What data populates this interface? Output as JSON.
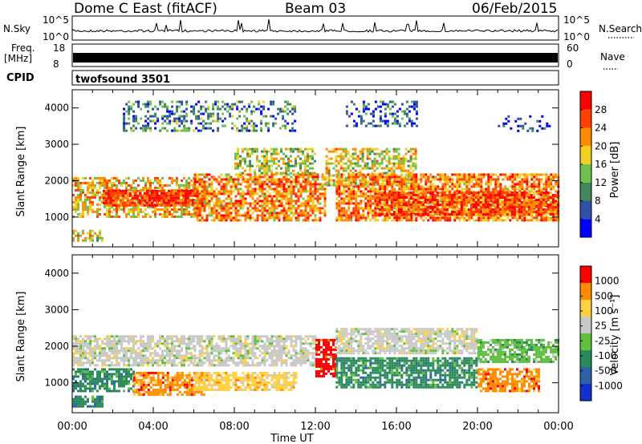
{
  "header": {
    "title": "Dome C East (fitACF)",
    "beam": "Beam 03",
    "date": "06/Feb/2015"
  },
  "strips": {
    "nsky_label": "N.Sky",
    "nsky_ticks": [
      "10^5",
      "10^0"
    ],
    "nsearch_label": "N.Search",
    "nsearch_ticks": [
      "10^5",
      "10^0"
    ],
    "freq_label": "Freq.",
    "freq_unit": "[MHz]",
    "freq_ticks": [
      "18",
      "8"
    ],
    "nave_label": "Nave",
    "nave_ticks": [
      "60",
      "0"
    ],
    "cpid_label": "CPID",
    "cpid_value": "twofsound 3501"
  },
  "chart_data": [
    {
      "type": "heatmap",
      "name": "power",
      "ylabel": "Slant Range [km]",
      "yticks": [
        "4000",
        "3000",
        "2000",
        "1000"
      ],
      "ylim_km": [
        180,
        4500
      ],
      "colorbar_label": "Power [dB]",
      "colorbar_ticks": [
        "28",
        "24",
        "20",
        "16",
        "12",
        "8",
        "4"
      ],
      "colorbar_range": [
        0,
        32
      ],
      "colors": [
        "#0000ff",
        "#3050a8",
        "#408858",
        "#70c050",
        "#f0d020",
        "#ff8c00",
        "#ff4000",
        "#ff0000"
      ],
      "regions": [
        {
          "t": [
            0.0,
            1.5
          ],
          "r": [
            350,
            650
          ],
          "level": 0.55
        },
        {
          "t": [
            0.0,
            6.0
          ],
          "r": [
            1000,
            2100
          ],
          "level": 0.62
        },
        {
          "t": [
            1.5,
            6.5
          ],
          "r": [
            1350,
            1750
          ],
          "level": 0.85
        },
        {
          "t": [
            6.0,
            12.5
          ],
          "r": [
            900,
            2200
          ],
          "level": 0.7
        },
        {
          "t": [
            8.0,
            12.0
          ],
          "r": [
            2200,
            2900
          ],
          "level": 0.5
        },
        {
          "t": [
            12.5,
            17.0
          ],
          "r": [
            1900,
            2900
          ],
          "level": 0.55
        },
        {
          "t": [
            13.0,
            24.0
          ],
          "r": [
            900,
            2200
          ],
          "level": 0.72
        },
        {
          "t": [
            15.0,
            24.0
          ],
          "r": [
            1100,
            1700
          ],
          "level": 0.8
        },
        {
          "t": [
            2.5,
            11.0
          ],
          "r": [
            3400,
            4200
          ],
          "level": 0.3
        },
        {
          "t": [
            13.5,
            17.0
          ],
          "r": [
            3500,
            4200
          ],
          "level": 0.2
        },
        {
          "t": [
            21.0,
            23.5
          ],
          "r": [
            3400,
            3800
          ],
          "level": 0.15
        }
      ]
    },
    {
      "type": "heatmap",
      "name": "velocity",
      "ylabel": "Slant Range [km]",
      "yticks": [
        "4000",
        "3000",
        "2000",
        "1000"
      ],
      "ylim_km": [
        180,
        4500
      ],
      "colorbar_label": "Velocity [m s⁻¹]",
      "colorbar_ticks": [
        "1000",
        "500",
        "100",
        "25",
        "-25",
        "-100",
        "-500",
        "-1000"
      ],
      "colors": [
        "#1030d0",
        "#3060a8",
        "#2a8a5a",
        "#60c040",
        "#c8c8c8",
        "#ffd040",
        "#ff8c00",
        "#ff0000"
      ],
      "regions": [
        {
          "t": [
            0.0,
            6.0
          ],
          "r": [
            1500,
            2300
          ],
          "cls": 4
        },
        {
          "t": [
            0.0,
            3.0
          ],
          "r": [
            800,
            1400
          ],
          "cls": 2
        },
        {
          "t": [
            0.0,
            1.5
          ],
          "r": [
            350,
            650
          ],
          "cls": 2
        },
        {
          "t": [
            3.0,
            6.5
          ],
          "r": [
            700,
            1300
          ],
          "cls": 6
        },
        {
          "t": [
            6.0,
            12.0
          ],
          "r": [
            1500,
            2300
          ],
          "cls": 4
        },
        {
          "t": [
            6.0,
            11.0
          ],
          "r": [
            800,
            1300
          ],
          "cls": 5
        },
        {
          "t": [
            12.0,
            13.0
          ],
          "r": [
            1200,
            2200
          ],
          "cls": 7
        },
        {
          "t": [
            13.0,
            20.0
          ],
          "r": [
            1800,
            2500
          ],
          "cls": 4
        },
        {
          "t": [
            13.0,
            20.0
          ],
          "r": [
            900,
            1700
          ],
          "cls": 2
        },
        {
          "t": [
            20.0,
            23.0
          ],
          "r": [
            800,
            1400
          ],
          "cls": 6
        },
        {
          "t": [
            20.0,
            24.0
          ],
          "r": [
            1600,
            2200
          ],
          "cls": 3
        }
      ]
    }
  ],
  "x_axis": {
    "label": "Time UT",
    "ticks": [
      "00:00",
      "04:00",
      "08:00",
      "12:00",
      "16:00",
      "20:00",
      "00:00"
    ]
  }
}
